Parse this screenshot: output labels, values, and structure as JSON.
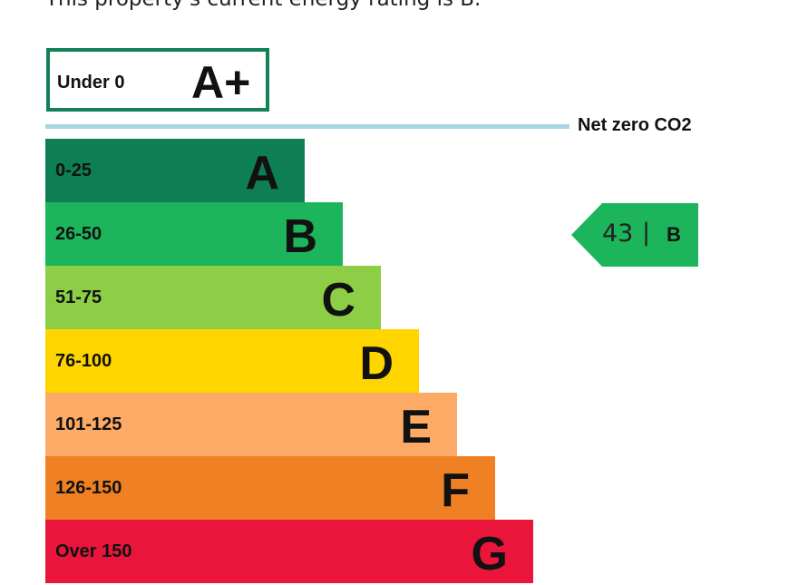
{
  "intro_text": "This property's current energy rating is B.",
  "net_zero_label": "Net zero CO2",
  "chart_data": {
    "type": "bar",
    "top_band": {
      "range": "Under 0",
      "letter": "A+",
      "color": "#138056"
    },
    "categories": [
      "0-25",
      "26-50",
      "51-75",
      "76-100",
      "101-125",
      "126-150",
      "Over 150"
    ],
    "letters": [
      "A",
      "B",
      "C",
      "D",
      "E",
      "F",
      "G"
    ],
    "colors": [
      "#0e7f55",
      "#1db55c",
      "#8dce46",
      "#ffd500",
      "#fcaa65",
      "#ef8023",
      "#e9153b"
    ],
    "current_rating": {
      "score": "43",
      "separator": "|",
      "letter": "B",
      "color": "#1db55c"
    }
  }
}
